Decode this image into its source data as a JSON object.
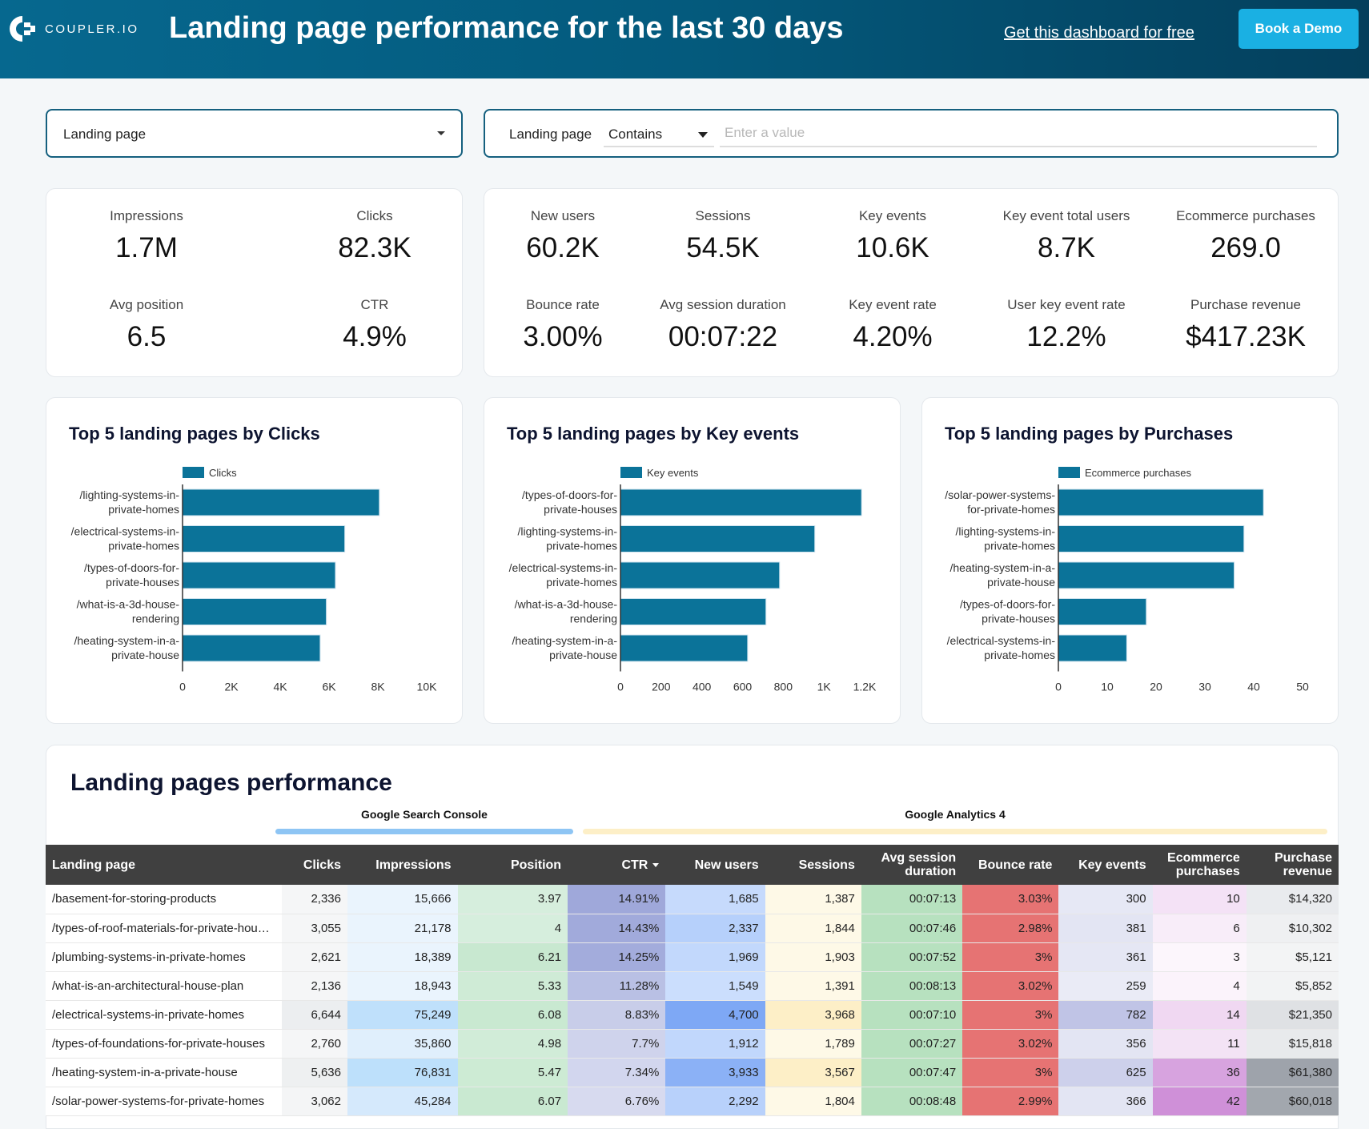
{
  "header": {
    "logo_text": "COUPLER.IO",
    "title": "Landing page performance for the last 30 days",
    "free_link": "Get this dashboard for free",
    "demo_button": "Book a Demo"
  },
  "filters": {
    "dimension_select": "Landing page",
    "condition_label": "Landing page",
    "condition_operator": "Contains",
    "condition_placeholder": "Enter a value"
  },
  "kpis_gsc": [
    {
      "label": "Impressions",
      "value": "1.7M"
    },
    {
      "label": "Clicks",
      "value": "82.3K"
    },
    {
      "label": "Avg position",
      "value": "6.5"
    },
    {
      "label": "CTR",
      "value": "4.9%"
    }
  ],
  "kpis_ga4": [
    {
      "label": "New users",
      "value": "60.2K"
    },
    {
      "label": "Sessions",
      "value": "54.5K"
    },
    {
      "label": "Key events",
      "value": "10.6K"
    },
    {
      "label": "Key event total users",
      "value": "8.7K"
    },
    {
      "label": "Ecommerce purchases",
      "value": "269.0"
    },
    {
      "label": "Bounce rate",
      "value": "3.00%"
    },
    {
      "label": "Avg session duration",
      "value": "00:07:22"
    },
    {
      "label": "Key event rate",
      "value": "4.20%"
    },
    {
      "label": "User key event rate",
      "value": "12.2%"
    },
    {
      "label": "Purchase revenue",
      "value": "$417.23K"
    }
  ],
  "chart_data": [
    {
      "type": "bar",
      "orientation": "horizontal",
      "title": "Top 5 landing pages by Clicks",
      "legend": "Clicks",
      "legend_position": "top",
      "categories": [
        [
          "/lighting-systems-in-",
          "private-homes"
        ],
        [
          "/electrical-systems-in-",
          "private-homes"
        ],
        [
          "/types-of-doors-for-",
          "private-houses"
        ],
        [
          "/what-is-a-3d-house-",
          "rendering"
        ],
        [
          "/heating-system-in-a-",
          "private-house"
        ]
      ],
      "values": [
        8060,
        6644,
        6260,
        5890,
        5636
      ],
      "xlim": [
        0,
        10000
      ],
      "ticks": [
        0,
        2000,
        4000,
        6000,
        8000,
        10000
      ],
      "tick_labels": [
        "0",
        "2K",
        "4K",
        "6K",
        "8K",
        "10K"
      ],
      "color": "#0b7399"
    },
    {
      "type": "bar",
      "orientation": "horizontal",
      "title": "Top 5 landing pages by Key events",
      "legend": "Key events",
      "legend_position": "top",
      "categories": [
        [
          "/types-of-doors-for-",
          "private-houses"
        ],
        [
          "/lighting-systems-in-",
          "private-homes"
        ],
        [
          "/electrical-systems-in-",
          "private-homes"
        ],
        [
          "/what-is-a-3d-house-",
          "rendering"
        ],
        [
          "/heating-system-in-a-",
          "private-house"
        ]
      ],
      "values": [
        1185,
        955,
        782,
        715,
        625
      ],
      "xlim": [
        0,
        1200
      ],
      "ticks": [
        0,
        200,
        400,
        600,
        800,
        1000,
        1200
      ],
      "tick_labels": [
        "0",
        "200",
        "400",
        "600",
        "800",
        "1K",
        "1.2K"
      ],
      "color": "#0b7399"
    },
    {
      "type": "bar",
      "orientation": "horizontal",
      "title": "Top 5 landing pages by Purchases",
      "legend": "Ecommerce purchases",
      "legend_position": "top",
      "categories": [
        [
          "/solar-power-systems-",
          "for-private-homes"
        ],
        [
          "/lighting-systems-in-",
          "private-homes"
        ],
        [
          "/heating-system-in-a-",
          "private-house"
        ],
        [
          "/types-of-doors-for-",
          "private-houses"
        ],
        [
          "/electrical-systems-in-",
          "private-homes"
        ]
      ],
      "values": [
        42,
        38,
        36,
        18,
        14
      ],
      "xlim": [
        0,
        50
      ],
      "ticks": [
        0,
        10,
        20,
        30,
        40,
        50
      ],
      "tick_labels": [
        "0",
        "10",
        "20",
        "30",
        "40",
        "50"
      ],
      "color": "#0b7399"
    }
  ],
  "table": {
    "title": "Landing pages performance",
    "groups": [
      {
        "label": "Google Search Console",
        "color": "#8ec5f4"
      },
      {
        "label": "Google Analytics 4",
        "color": "#fdefc7"
      }
    ],
    "columns": [
      "Landing page",
      "Clicks",
      "Impressions",
      "Position",
      "CTR",
      "New users",
      "Sessions",
      "Avg session duration",
      "Bounce rate",
      "Key events",
      "Ecommerce purchases",
      "Purchase revenue"
    ],
    "sorted_column": "CTR",
    "sort_direction": "descending",
    "rows": [
      [
        "/basement-for-storing-products",
        "2,336",
        "15,666",
        "3.97",
        "14.91%",
        "1,685",
        "1,387",
        "00:07:13",
        "3.03%",
        "300",
        "10",
        "$14,320"
      ],
      [
        "/types-of-roof-materials-for-private-hou…",
        "3,055",
        "21,178",
        "4",
        "14.43%",
        "2,337",
        "1,844",
        "00:07:46",
        "2.98%",
        "381",
        "6",
        "$10,302"
      ],
      [
        "/plumbing-systems-in-private-homes",
        "2,621",
        "18,389",
        "6.21",
        "14.25%",
        "1,969",
        "1,903",
        "00:07:52",
        "3%",
        "361",
        "3",
        "$5,121"
      ],
      [
        "/what-is-an-architectural-house-plan",
        "2,136",
        "18,943",
        "5.33",
        "11.28%",
        "1,549",
        "1,391",
        "00:08:13",
        "3.02%",
        "259",
        "4",
        "$5,852"
      ],
      [
        "/electrical-systems-in-private-homes",
        "6,644",
        "75,249",
        "6.08",
        "8.83%",
        "4,700",
        "3,968",
        "00:07:10",
        "3%",
        "782",
        "14",
        "$21,350"
      ],
      [
        "/types-of-foundations-for-private-houses",
        "2,760",
        "35,860",
        "4.98",
        "7.7%",
        "1,912",
        "1,789",
        "00:07:27",
        "3.02%",
        "356",
        "11",
        "$15,818"
      ],
      [
        "/heating-system-in-a-private-house",
        "5,636",
        "76,831",
        "5.47",
        "7.34%",
        "3,933",
        "3,567",
        "00:07:47",
        "3%",
        "625",
        "36",
        "$61,380"
      ],
      [
        "/solar-power-systems-for-private-homes",
        "3,062",
        "45,284",
        "6.07",
        "6.76%",
        "2,292",
        "1,804",
        "00:08:48",
        "2.99%",
        "366",
        "42",
        "$60,018"
      ]
    ],
    "cell_colors": [
      [
        "#ffffff",
        "#f5f6f7",
        "#eaf4fd",
        "#d6eedd",
        "#9fa8da",
        "#c6dafc",
        "#fef9e7",
        "#b7e1bf",
        "#e67373",
        "#e6e8f5",
        "#f4e2f6",
        "#e9ebee"
      ],
      [
        "#ffffff",
        "#f5f6f7",
        "#eaf4fd",
        "#d6eedd",
        "#a1aadb",
        "#b6d0fb",
        "#fef9e7",
        "#b7e1bf",
        "#e67373",
        "#e3e5f3",
        "#f8edf9",
        "#eff0f2"
      ],
      [
        "#ffffff",
        "#f5f6f7",
        "#eaf4fd",
        "#c8e8d0",
        "#a3acdc",
        "#c2d8fc",
        "#fef9e7",
        "#b7e1bf",
        "#e67373",
        "#e5e7f4",
        "#fcf6fc",
        "#f3f4f5"
      ],
      [
        "#ffffff",
        "#f5f6f7",
        "#eaf4fd",
        "#cfebd6",
        "#b9c0e4",
        "#cbdefd",
        "#fef9e7",
        "#b7e1bf",
        "#e67373",
        "#eaebf6",
        "#fbf3fb",
        "#f2f3f4"
      ],
      [
        "#ffffff",
        "#eceef0",
        "#bfe0fb",
        "#c9e9d1",
        "#c8cde9",
        "#7ea8f5",
        "#fdefc7",
        "#b7e1bf",
        "#e67373",
        "#c0c4e6",
        "#f0d8f2",
        "#dfe1e4"
      ],
      [
        "#ffffff",
        "#f5f6f7",
        "#e0effc",
        "#d1ecd8",
        "#cfd3ec",
        "#c1d7fc",
        "#fef9e7",
        "#b7e1bf",
        "#e67373",
        "#e3e5f3",
        "#f3e3f5",
        "#e8eaec"
      ],
      [
        "#ffffff",
        "#eef0f1",
        "#bde0fb",
        "#cdebd4",
        "#d2d6ee",
        "#8bb1f6",
        "#fdefc7",
        "#b7e1bf",
        "#e67373",
        "#cdd0eb",
        "#d7a3df",
        "#9ea3ab"
      ],
      [
        "#ffffff",
        "#f4f5f6",
        "#d5e9fc",
        "#c9e9d1",
        "#d7daef",
        "#b8d1fb",
        "#fef9e7",
        "#b7e1bf",
        "#e67373",
        "#e3e5f3",
        "#cf90d8",
        "#a2a7ae"
      ]
    ]
  }
}
